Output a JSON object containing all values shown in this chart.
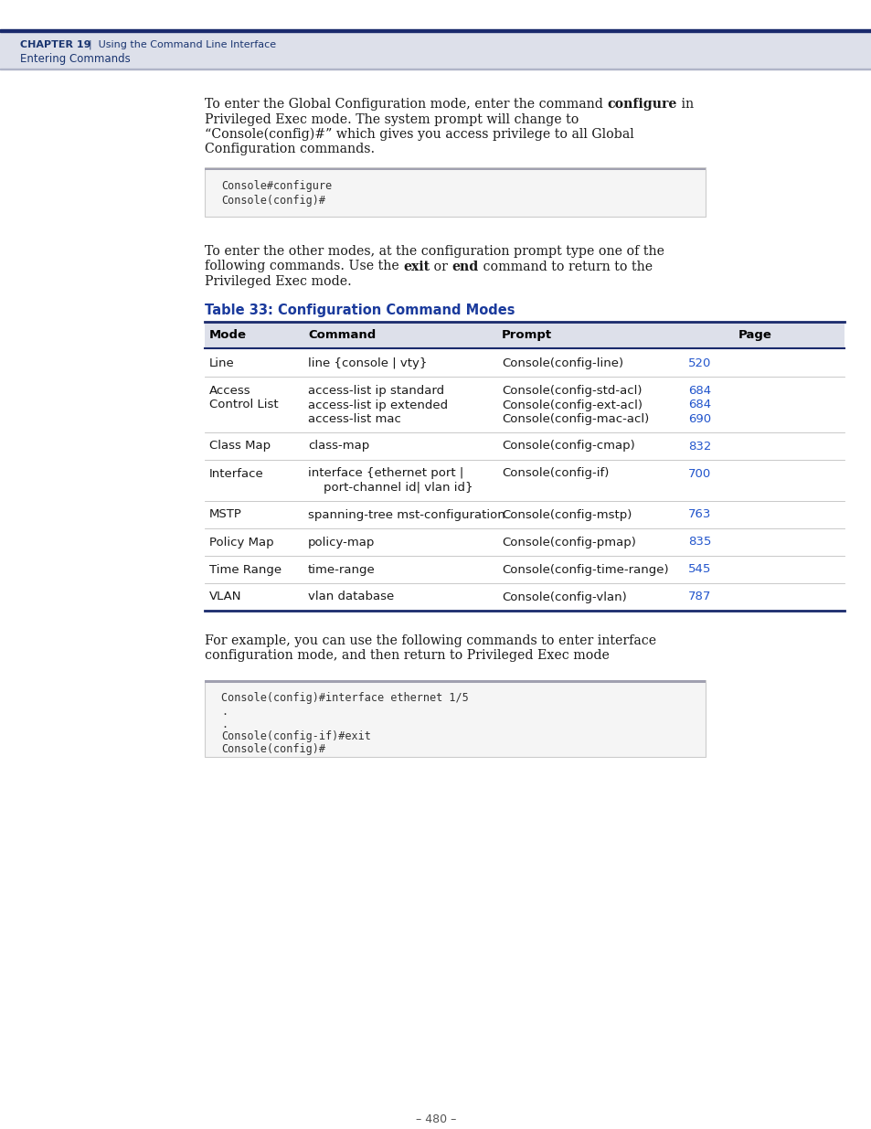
{
  "page_bg": "#ffffff",
  "header_bg": "#dde0ea",
  "header_dark_line": "#1a2a6c",
  "header_text_color": "#1a3570",
  "chapter_bold": "CHAPTER 19",
  "chapter_rest": "  |  Using the Command Line Interface",
  "section_line": "Entering Commands",
  "table_title": "Table 33: Configuration Command Modes",
  "table_title_color": "#1a3a9c",
  "col_headers": [
    "Mode",
    "Command",
    "Prompt",
    "Page"
  ],
  "table_line_color": "#1a2a6c",
  "table_header_bg": "#dde0ea",
  "table_rows": [
    {
      "mode": [
        "Line"
      ],
      "commands": [
        "line {console | vty}"
      ],
      "prompts": [
        "Console(config-line)"
      ],
      "pages": [
        "520"
      ]
    },
    {
      "mode": [
        "Access",
        "Control List"
      ],
      "commands": [
        "access-list ip standard",
        "access-list ip extended",
        "access-list mac"
      ],
      "prompts": [
        "Console(config-std-acl)",
        "Console(config-ext-acl)",
        "Console(config-mac-acl)"
      ],
      "pages": [
        "684",
        "684",
        "690"
      ]
    },
    {
      "mode": [
        "Class Map"
      ],
      "commands": [
        "class-map"
      ],
      "prompts": [
        "Console(config-cmap)"
      ],
      "pages": [
        "832"
      ]
    },
    {
      "mode": [
        "Interface"
      ],
      "commands": [
        "interface {ethernet ⁣port⁣ |",
        "    port-channel ⁣id⁣| vlan ⁣id⁣}"
      ],
      "prompts": [
        "Console(config-if)"
      ],
      "pages": [
        "700"
      ]
    },
    {
      "mode": [
        "MSTP"
      ],
      "commands": [
        "spanning-tree mst-configuration"
      ],
      "prompts": [
        "Console(config-mstp)"
      ],
      "pages": [
        "763"
      ]
    },
    {
      "mode": [
        "Policy Map"
      ],
      "commands": [
        "policy-map"
      ],
      "prompts": [
        "Console(config-pmap)"
      ],
      "pages": [
        "835"
      ]
    },
    {
      "mode": [
        "Time Range"
      ],
      "commands": [
        "time-range"
      ],
      "prompts": [
        "Console(config-time-range)"
      ],
      "pages": [
        "545"
      ]
    },
    {
      "mode": [
        "VLAN"
      ],
      "commands": [
        "vlan database"
      ],
      "prompts": [
        "Console(config-vlan)"
      ],
      "pages": [
        "787"
      ]
    }
  ],
  "page_link_color": "#2255cc",
  "page_number": "– 480 –",
  "code_bg": "#f5f5f5",
  "code_border_top": "#a0a0b0",
  "code_border": "#cccccc",
  "code_text_color": "#333333",
  "text_color": "#1a1a1a",
  "body_font": "DejaVu Serif",
  "mono_font": "DejaVu Sans Mono",
  "tbl_font": "DejaVu Sans"
}
